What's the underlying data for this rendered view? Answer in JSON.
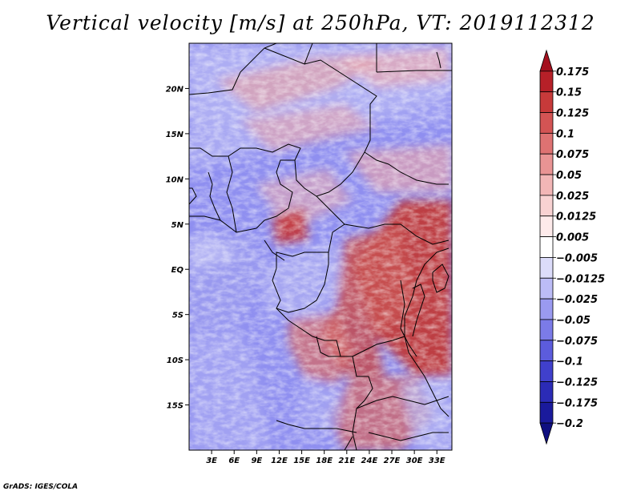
{
  "title": "Vertical velocity [m/s] at 250hPa, VT: 2019112312",
  "footer": "GrADS: IGES/COLA",
  "map": {
    "lon_range": [
      0,
      35
    ],
    "lat_range": [
      -20,
      25
    ],
    "lon_ticks": [
      "3E",
      "6E",
      "9E",
      "12E",
      "15E",
      "18E",
      "21E",
      "24E",
      "27E",
      "30E",
      "33E"
    ],
    "lat_ticks": [
      "20N",
      "15N",
      "10N",
      "5N",
      "EQ",
      "5S",
      "10S",
      "15S"
    ],
    "field_pattern": "mostly negative (blue) over the west and north, strongly positive (red) over eastern Congo basin, Lake Tanganyika region and southern Africa"
  },
  "colorbar": {
    "labels": [
      "0.175",
      "0.15",
      "0.125",
      "0.1",
      "0.075",
      "0.05",
      "0.025",
      "0.0125",
      "0.005",
      "−0.005",
      "−0.0125",
      "−0.025",
      "−0.05",
      "−0.075",
      "−0.1",
      "−0.125",
      "−0.175",
      "−0.2"
    ],
    "colors": [
      "#a4101e",
      "#b62028",
      "#c73a3a",
      "#d35454",
      "#de7272",
      "#e99494",
      "#f2b6b6",
      "#f8d2d2",
      "#fdeaea",
      "#ffffff",
      "#dcdcfa",
      "#bcbcf6",
      "#9a9af0",
      "#7b7be8",
      "#5c5cdc",
      "#4040cc",
      "#2b2bb6",
      "#1a1a9c",
      "#0f0f80"
    ]
  }
}
